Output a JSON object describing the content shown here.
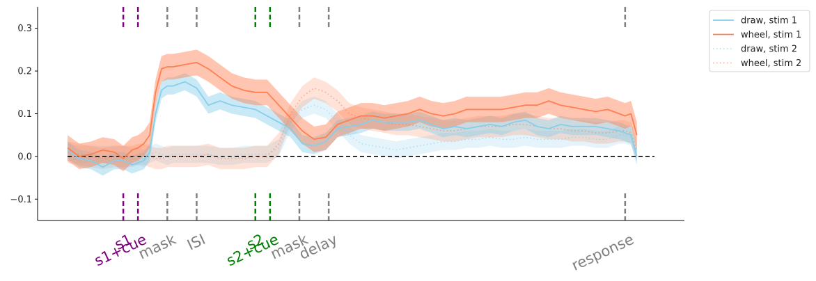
{
  "chart_data": {
    "type": "line",
    "title": "",
    "xlabel": "",
    "ylabel": "",
    "xlim": [
      0,
      100
    ],
    "ylim": [
      -0.15,
      0.35
    ],
    "y_ticks": [
      -0.1,
      0.0,
      0.1,
      0.2,
      0.3
    ],
    "y_tick_labels": [
      "−0.1",
      "0.0",
      "0.1",
      "0.2",
      "0.3"
    ],
    "grid": false,
    "legend_position": "upper-right-outside",
    "reference_line": 0,
    "events": [
      {
        "label": "s1",
        "x": 9.5,
        "color": "#800080"
      },
      {
        "label": "s1+cue",
        "x": 12.0,
        "color": "#800080"
      },
      {
        "label": "mask",
        "x": 17.0,
        "color": "#808080"
      },
      {
        "label": "ISI",
        "x": 22.0,
        "color": "#808080"
      },
      {
        "label": "s2",
        "x": 32.0,
        "color": "#008000"
      },
      {
        "label": "s2+cue",
        "x": 34.5,
        "color": "#008000"
      },
      {
        "label": "mask",
        "x": 39.5,
        "color": "#808080"
      },
      {
        "label": "delay",
        "x": 44.5,
        "color": "#808080"
      },
      {
        "label": "response",
        "x": 95.0,
        "color": "#808080"
      }
    ],
    "series": [
      {
        "name": "draw, stim 1",
        "color": "#87ceeb",
        "style": "solid",
        "x": [
          0,
          2,
          4,
          6,
          8,
          9.5,
          11,
          12,
          13,
          14,
          15,
          16,
          17,
          18,
          20,
          22,
          24,
          26,
          28,
          30,
          32,
          34,
          36,
          38,
          40,
          42,
          44,
          46,
          48,
          50,
          52,
          54,
          56,
          58,
          60,
          62,
          64,
          66,
          68,
          70,
          72,
          74,
          76,
          78,
          80,
          82,
          84,
          86,
          88,
          90,
          92,
          94,
          95,
          96,
          97
        ],
        "values": [
          0.015,
          -0.005,
          -0.01,
          -0.025,
          -0.01,
          -0.01,
          -0.02,
          -0.015,
          -0.01,
          0.01,
          0.1,
          0.155,
          0.165,
          0.165,
          0.175,
          0.16,
          0.12,
          0.13,
          0.12,
          0.115,
          0.11,
          0.095,
          0.08,
          0.065,
          0.03,
          0.025,
          0.035,
          0.065,
          0.07,
          0.075,
          0.085,
          0.08,
          0.08,
          0.08,
          0.085,
          0.075,
          0.065,
          0.07,
          0.065,
          0.07,
          0.075,
          0.07,
          0.08,
          0.085,
          0.07,
          0.065,
          0.075,
          0.07,
          0.07,
          0.07,
          0.065,
          0.06,
          0.055,
          0.05,
          0.0
        ],
        "band": 0.02
      },
      {
        "name": "wheel, stim 1",
        "color": "#ff7f50",
        "style": "solid",
        "x": [
          0,
          2,
          4,
          6,
          8,
          9.5,
          11,
          12,
          13,
          14,
          15,
          16,
          17,
          18,
          20,
          22,
          24,
          26,
          28,
          30,
          32,
          34,
          36,
          38,
          40,
          42,
          44,
          46,
          48,
          50,
          52,
          54,
          56,
          58,
          60,
          62,
          64,
          66,
          68,
          70,
          72,
          74,
          76,
          78,
          80,
          82,
          84,
          86,
          88,
          90,
          92,
          94,
          95,
          96,
          97
        ],
        "values": [
          0.02,
          0.0,
          0.005,
          0.015,
          0.01,
          -0.005,
          0.015,
          0.02,
          0.03,
          0.05,
          0.15,
          0.205,
          0.21,
          0.21,
          0.215,
          0.22,
          0.205,
          0.185,
          0.165,
          0.155,
          0.15,
          0.15,
          0.12,
          0.09,
          0.06,
          0.04,
          0.045,
          0.075,
          0.085,
          0.095,
          0.095,
          0.09,
          0.095,
          0.1,
          0.11,
          0.1,
          0.095,
          0.1,
          0.11,
          0.11,
          0.11,
          0.11,
          0.115,
          0.12,
          0.12,
          0.13,
          0.12,
          0.115,
          0.11,
          0.105,
          0.11,
          0.1,
          0.095,
          0.1,
          0.05
        ],
        "band": 0.03
      },
      {
        "name": "draw, stim 2",
        "color": "#87ceeb",
        "style": "dotted",
        "x": [
          0,
          2,
          4,
          6,
          8,
          9.5,
          11,
          12,
          13,
          14,
          15,
          16,
          17,
          18,
          20,
          22,
          24,
          26,
          28,
          30,
          32,
          34,
          36,
          38,
          40,
          42,
          44,
          46,
          48,
          50,
          52,
          54,
          56,
          58,
          60,
          62,
          64,
          66,
          68,
          70,
          72,
          74,
          76,
          78,
          80,
          82,
          84,
          86,
          88,
          90,
          92,
          94,
          95,
          96,
          97
        ],
        "values": [
          0.01,
          0.005,
          0.005,
          0.005,
          0.005,
          0.005,
          0.0,
          0.0,
          -0.005,
          0.005,
          0.01,
          0.005,
          0.0,
          0.005,
          0.005,
          0.005,
          0.005,
          0.0,
          0.0,
          0.005,
          0.005,
          0.005,
          0.02,
          0.08,
          0.11,
          0.12,
          0.11,
          0.08,
          0.05,
          0.03,
          0.025,
          0.02,
          0.015,
          0.02,
          0.025,
          0.03,
          0.035,
          0.035,
          0.04,
          0.04,
          0.045,
          0.04,
          0.04,
          0.045,
          0.04,
          0.04,
          0.04,
          0.045,
          0.045,
          0.04,
          0.04,
          0.05,
          0.05,
          0.045,
          0.01
        ],
        "band": 0.02
      },
      {
        "name": "wheel, stim 2",
        "color": "#ff7f50",
        "style": "dotted",
        "x": [
          0,
          2,
          4,
          6,
          8,
          9.5,
          11,
          12,
          13,
          14,
          15,
          16,
          17,
          18,
          20,
          22,
          24,
          26,
          28,
          30,
          32,
          34,
          36,
          38,
          40,
          42,
          44,
          46,
          48,
          50,
          52,
          54,
          56,
          58,
          60,
          62,
          64,
          66,
          68,
          70,
          72,
          74,
          76,
          78,
          80,
          82,
          84,
          86,
          88,
          90,
          92,
          94,
          95,
          96,
          97
        ],
        "values": [
          0.01,
          0.005,
          0.0,
          -0.005,
          0.0,
          0.0,
          0.0,
          0.005,
          0.005,
          0.0,
          -0.005,
          -0.005,
          0.0,
          0.0,
          0.0,
          0.0,
          0.005,
          -0.005,
          -0.005,
          -0.005,
          0.0,
          0.0,
          0.03,
          0.1,
          0.14,
          0.16,
          0.15,
          0.13,
          0.1,
          0.09,
          0.085,
          0.08,
          0.075,
          0.075,
          0.07,
          0.065,
          0.06,
          0.06,
          0.065,
          0.07,
          0.07,
          0.07,
          0.075,
          0.075,
          0.07,
          0.065,
          0.065,
          0.06,
          0.06,
          0.055,
          0.055,
          0.06,
          0.06,
          0.055,
          0.015
        ],
        "band": 0.025
      }
    ]
  }
}
